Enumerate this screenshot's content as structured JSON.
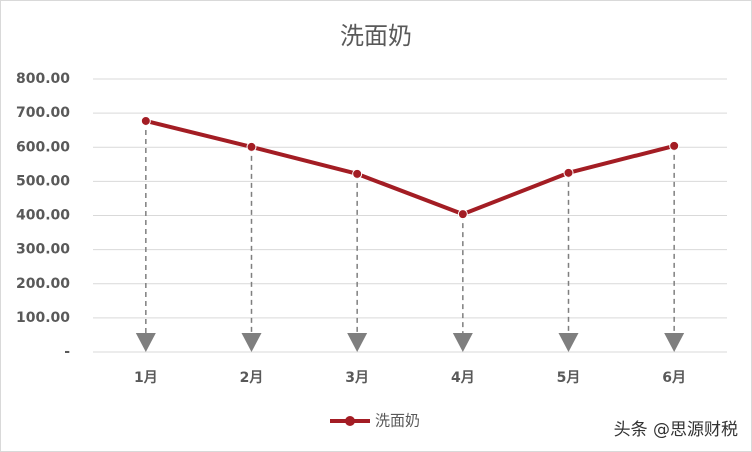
{
  "chart_data": {
    "type": "line",
    "title": "洗面奶",
    "categories": [
      "1月",
      "2月",
      "3月",
      "4月",
      "5月",
      "6月"
    ],
    "series": [
      {
        "name": "洗面奶",
        "color": "#a31d24",
        "values": [
          677,
          601,
          522,
          404,
          525,
          604
        ]
      }
    ],
    "ylim": [
      0,
      800
    ],
    "yticks": [
      {
        "value": 0,
        "label": "-"
      },
      {
        "value": 100,
        "label": "100.00"
      },
      {
        "value": 200,
        "label": "200.00"
      },
      {
        "value": 300,
        "label": "300.00"
      },
      {
        "value": 400,
        "label": "400.00"
      },
      {
        "value": 500,
        "label": "500.00"
      },
      {
        "value": 600,
        "label": "600.00"
      },
      {
        "value": 700,
        "label": "700.00"
      },
      {
        "value": 800,
        "label": "800.00"
      }
    ],
    "grid": true,
    "legend": "bottom",
    "drop_lines": true,
    "watermark": "头条 @思源财税"
  }
}
